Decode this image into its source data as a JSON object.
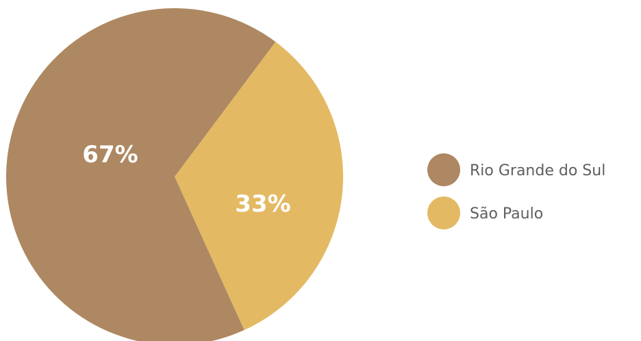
{
  "chart_data": {
    "type": "pie",
    "slices": [
      {
        "name": "Rio Grande do Sul",
        "value": 67,
        "label": "67%",
        "color": "#ae8862"
      },
      {
        "name": "São Paulo",
        "value": 33,
        "label": "33%",
        "color": "#e3b963"
      }
    ],
    "legend": {
      "position": "right",
      "items": [
        "Rio Grande do Sul",
        "São Paulo"
      ]
    }
  }
}
